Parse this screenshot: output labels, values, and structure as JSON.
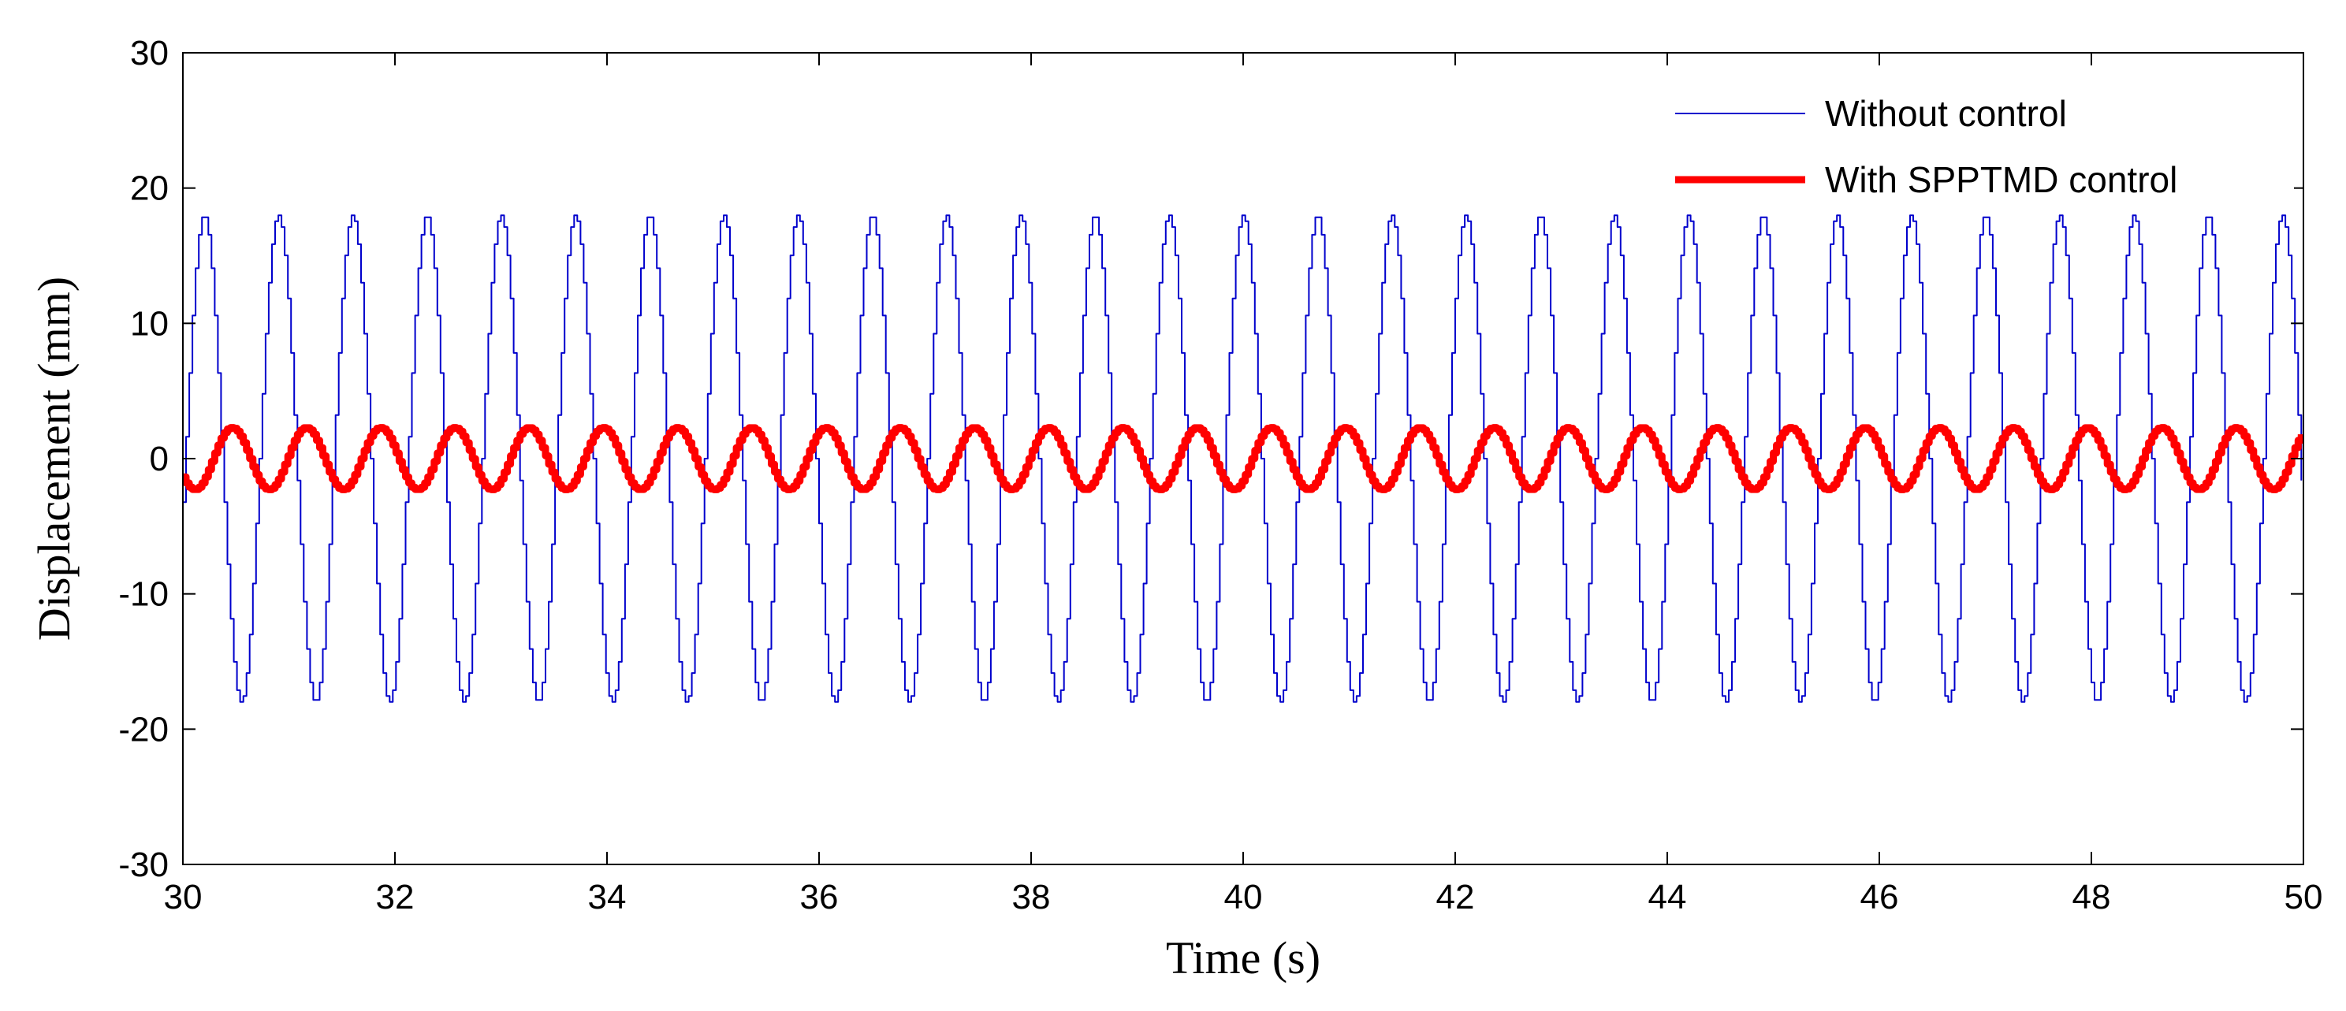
{
  "chart_data": {
    "type": "line",
    "title": "",
    "xlabel": "Time (s)",
    "ylabel": "Displacement (mm)",
    "xlim": [
      30,
      50
    ],
    "ylim": [
      -30,
      30
    ],
    "xticks": [
      30,
      32,
      34,
      36,
      38,
      40,
      42,
      44,
      46,
      48,
      50
    ],
    "yticks": [
      -30,
      -20,
      -10,
      0,
      10,
      20,
      30
    ],
    "grid": false,
    "legend_position": "top-right",
    "series": [
      {
        "name": "Without control",
        "color": "#0000cc",
        "line": "thin",
        "signal": {
          "shape": "sine",
          "amplitude": 18,
          "period_s": 0.7,
          "phase_zero_cross_s": 30.02,
          "step_s": 0.03
        }
      },
      {
        "name": "With SPPTMD control",
        "color": "#ff0000",
        "line": "thick",
        "signal": {
          "shape": "sine",
          "amplitude": 2.3,
          "period_s": 0.7,
          "phase_zero_cross_s": 30.28,
          "step_s": 0.03
        }
      }
    ]
  }
}
